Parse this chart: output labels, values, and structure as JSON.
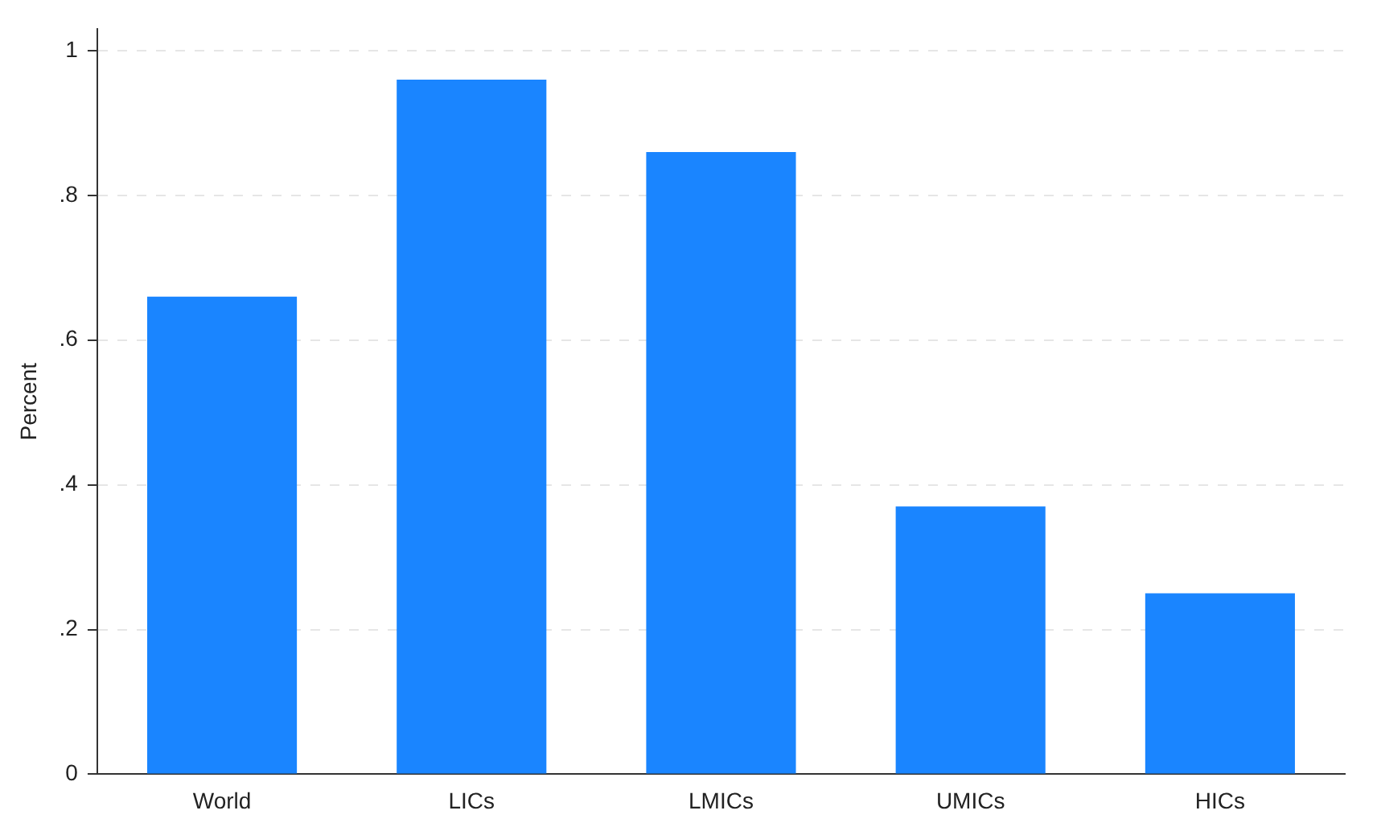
{
  "chart_data": {
    "type": "bar",
    "ylabel": "Percent",
    "categories": [
      "World",
      "LICs",
      "LMICs",
      "UMICs",
      "HICs"
    ],
    "values": [
      0.66,
      0.96,
      0.86,
      0.37,
      0.25
    ],
    "color": "#1a85ff",
    "ylim": [
      0,
      1.03
    ],
    "yticks": [
      {
        "value": 0,
        "label": "0"
      },
      {
        "value": 0.2,
        "label": ".2"
      },
      {
        "value": 0.4,
        "label": ".4"
      },
      {
        "value": 0.6,
        "label": ".6"
      },
      {
        "value": 0.8,
        "label": ".8"
      },
      {
        "value": 1,
        "label": "1"
      }
    ],
    "grid": "y",
    "legend": false
  }
}
